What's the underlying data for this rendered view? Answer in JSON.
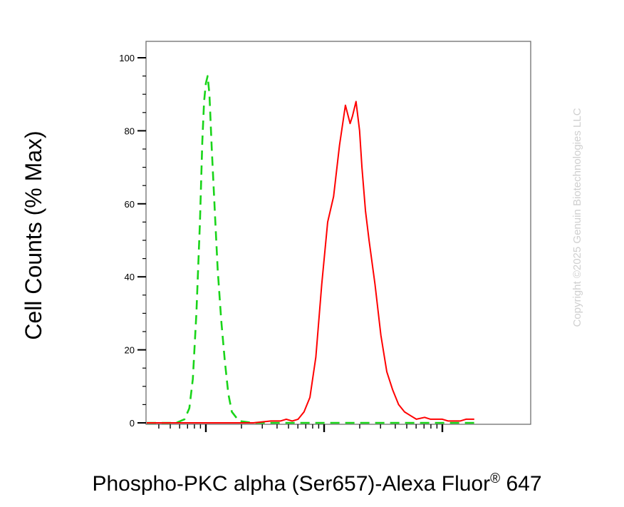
{
  "chart_data": {
    "type": "line",
    "title": "",
    "xlabel": "Phospho-PKC alpha (Ser657)-Alexa Fluor® 647",
    "xlabel_main": "Phospho-PKC alpha (Ser657)-Alexa Fluor",
    "xlabel_mark": "®",
    "xlabel_tail": " 647",
    "ylabel": "Cell Counts (% Max)",
    "x_scale": "log",
    "ylim": [
      0,
      100
    ],
    "y_ticks": [
      0,
      20,
      40,
      60,
      80,
      100
    ],
    "x_tick_labels_shown": false,
    "grid": false,
    "legend": "none",
    "series": [
      {
        "color": "#19d419",
        "style": "dashed",
        "x": [
          0.5,
          0.75,
          0.82,
          0.86,
          0.89,
          0.92,
          0.95,
          0.97,
          0.985,
          1.0,
          1.015,
          1.03,
          1.05,
          1.08,
          1.1,
          1.13,
          1.16,
          1.19,
          1.22,
          1.28,
          1.4,
          1.8,
          2.5,
          3.0,
          3.27
        ],
        "y": [
          0,
          0,
          1,
          4,
          12,
          30,
          55,
          77,
          88,
          93,
          95,
          90,
          75,
          55,
          42,
          28,
          17,
          8,
          3,
          0.5,
          0,
          0,
          0,
          0,
          0
        ]
      },
      {
        "color": "#ff0000",
        "style": "solid",
        "x": [
          0.5,
          1.0,
          1.4,
          1.55,
          1.63,
          1.68,
          1.73,
          1.78,
          1.83,
          1.88,
          1.93,
          1.98,
          2.03,
          2.08,
          2.13,
          2.18,
          2.22,
          2.24,
          2.27,
          2.3,
          2.32,
          2.35,
          2.38,
          2.43,
          2.48,
          2.53,
          2.58,
          2.63,
          2.68,
          2.73,
          2.78,
          2.85,
          2.9,
          3.0,
          3.05,
          3.15,
          3.2,
          3.27
        ],
        "y": [
          0,
          0,
          0,
          0.5,
          0.5,
          1,
          0.5,
          1,
          3,
          7,
          18,
          38,
          55,
          62,
          76,
          87,
          82,
          84,
          88,
          80,
          70,
          58,
          50,
          38,
          24,
          14,
          9,
          5,
          3,
          2,
          1,
          1.5,
          1,
          1,
          0.5,
          0.5,
          1,
          1
        ]
      }
    ]
  },
  "watermark": "Copyright ©2025 Genuin Biotechnologies LLC"
}
